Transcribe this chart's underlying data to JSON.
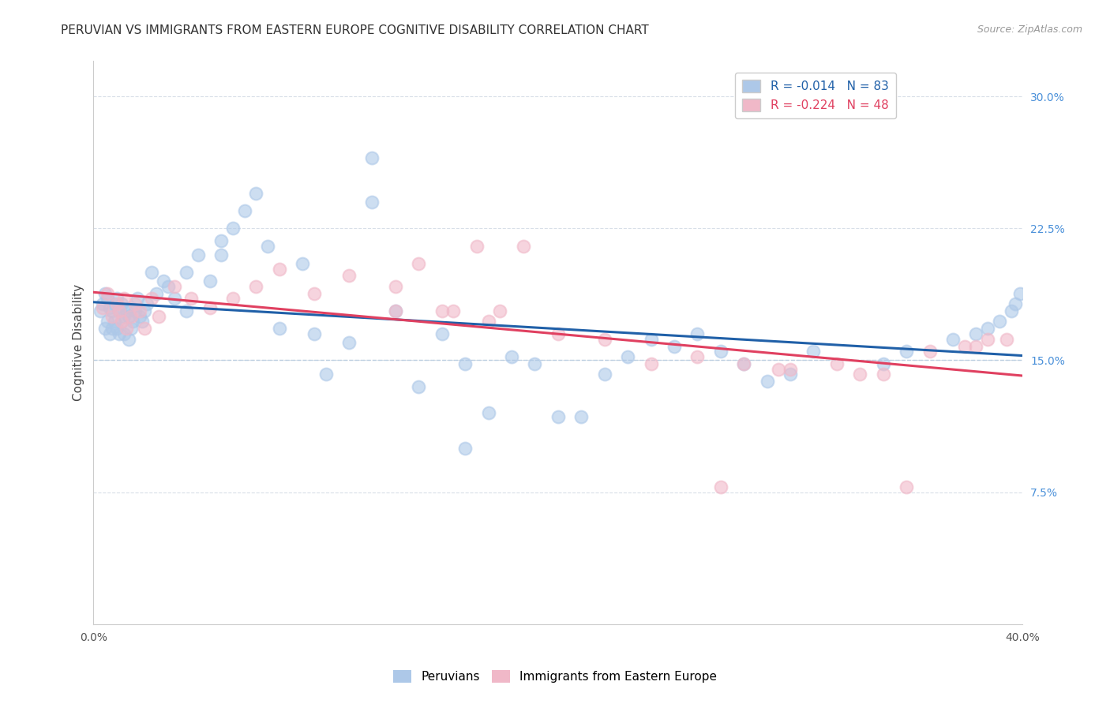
{
  "title": "PERUVIAN VS IMMIGRANTS FROM EASTERN EUROPE COGNITIVE DISABILITY CORRELATION CHART",
  "source": "Source: ZipAtlas.com",
  "ylabel": "Cognitive Disability",
  "xlim": [
    0.0,
    0.4
  ],
  "ylim": [
    0.0,
    0.32
  ],
  "yticks": [
    0.075,
    0.15,
    0.225,
    0.3
  ],
  "yticklabels": [
    "7.5%",
    "15.0%",
    "22.5%",
    "30.0%"
  ],
  "xtick_positions": [
    0.0,
    0.1,
    0.2,
    0.3,
    0.4
  ],
  "xticklabels": [
    "0.0%",
    "",
    "",
    "",
    "40.0%"
  ],
  "background_color": "#ffffff",
  "grid_color": "#d8dfe8",
  "blue_fill": "#adc8e8",
  "blue_edge": "#adc8e8",
  "pink_fill": "#f0b8c8",
  "pink_edge": "#f0b8c8",
  "blue_line_color": "#2060a8",
  "pink_line_color": "#e04060",
  "dashed_line_color": "#b8cce0",
  "r_blue": -0.014,
  "n_blue": 83,
  "r_pink": -0.224,
  "n_pink": 48,
  "legend_label_blue": "Peruvians",
  "legend_label_pink": "Immigrants from Eastern Europe",
  "legend_text_color_blue": "#2060a8",
  "legend_text_color_pink": "#e04060",
  "title_fontsize": 11,
  "axis_label_fontsize": 11,
  "tick_fontsize": 10,
  "source_fontsize": 9,
  "marker_size": 130,
  "line_width": 2.2,
  "blue_x": [
    0.003,
    0.004,
    0.005,
    0.005,
    0.006,
    0.006,
    0.007,
    0.007,
    0.008,
    0.008,
    0.009,
    0.009,
    0.01,
    0.01,
    0.011,
    0.011,
    0.012,
    0.012,
    0.013,
    0.013,
    0.014,
    0.015,
    0.015,
    0.016,
    0.016,
    0.017,
    0.018,
    0.019,
    0.02,
    0.021,
    0.022,
    0.023,
    0.025,
    0.027,
    0.03,
    0.032,
    0.035,
    0.04,
    0.045,
    0.05,
    0.055,
    0.06,
    0.065,
    0.07,
    0.075,
    0.08,
    0.09,
    0.095,
    0.1,
    0.11,
    0.12,
    0.13,
    0.14,
    0.15,
    0.16,
    0.17,
    0.18,
    0.19,
    0.2,
    0.21,
    0.22,
    0.23,
    0.24,
    0.25,
    0.26,
    0.27,
    0.28,
    0.29,
    0.3,
    0.31,
    0.34,
    0.35,
    0.37,
    0.38,
    0.385,
    0.39,
    0.395,
    0.397,
    0.399,
    0.04,
    0.055,
    0.12,
    0.16
  ],
  "blue_y": [
    0.178,
    0.182,
    0.188,
    0.168,
    0.185,
    0.172,
    0.18,
    0.165,
    0.178,
    0.168,
    0.182,
    0.172,
    0.185,
    0.168,
    0.178,
    0.165,
    0.172,
    0.182,
    0.175,
    0.165,
    0.178,
    0.175,
    0.162,
    0.18,
    0.168,
    0.172,
    0.178,
    0.185,
    0.175,
    0.172,
    0.178,
    0.182,
    0.2,
    0.188,
    0.195,
    0.192,
    0.185,
    0.2,
    0.21,
    0.195,
    0.218,
    0.225,
    0.235,
    0.245,
    0.215,
    0.168,
    0.205,
    0.165,
    0.142,
    0.16,
    0.24,
    0.178,
    0.135,
    0.165,
    0.148,
    0.12,
    0.152,
    0.148,
    0.118,
    0.118,
    0.142,
    0.152,
    0.162,
    0.158,
    0.165,
    0.155,
    0.148,
    0.138,
    0.142,
    0.155,
    0.148,
    0.155,
    0.162,
    0.165,
    0.168,
    0.172,
    0.178,
    0.182,
    0.188,
    0.178,
    0.21,
    0.265,
    0.1
  ],
  "pink_x": [
    0.004,
    0.006,
    0.008,
    0.01,
    0.011,
    0.012,
    0.013,
    0.014,
    0.016,
    0.018,
    0.02,
    0.022,
    0.025,
    0.028,
    0.035,
    0.042,
    0.05,
    0.06,
    0.07,
    0.08,
    0.095,
    0.11,
    0.13,
    0.15,
    0.17,
    0.2,
    0.22,
    0.24,
    0.26,
    0.28,
    0.3,
    0.32,
    0.34,
    0.36,
    0.375,
    0.385,
    0.393,
    0.14,
    0.165,
    0.185,
    0.13,
    0.155,
    0.175,
    0.27,
    0.35,
    0.295,
    0.33,
    0.38
  ],
  "pink_y": [
    0.18,
    0.188,
    0.175,
    0.182,
    0.178,
    0.172,
    0.185,
    0.168,
    0.175,
    0.182,
    0.178,
    0.168,
    0.185,
    0.175,
    0.192,
    0.185,
    0.18,
    0.185,
    0.192,
    0.202,
    0.188,
    0.198,
    0.192,
    0.178,
    0.172,
    0.165,
    0.162,
    0.148,
    0.152,
    0.148,
    0.145,
    0.148,
    0.142,
    0.155,
    0.158,
    0.162,
    0.162,
    0.205,
    0.215,
    0.215,
    0.178,
    0.178,
    0.178,
    0.078,
    0.078,
    0.145,
    0.142,
    0.158
  ]
}
